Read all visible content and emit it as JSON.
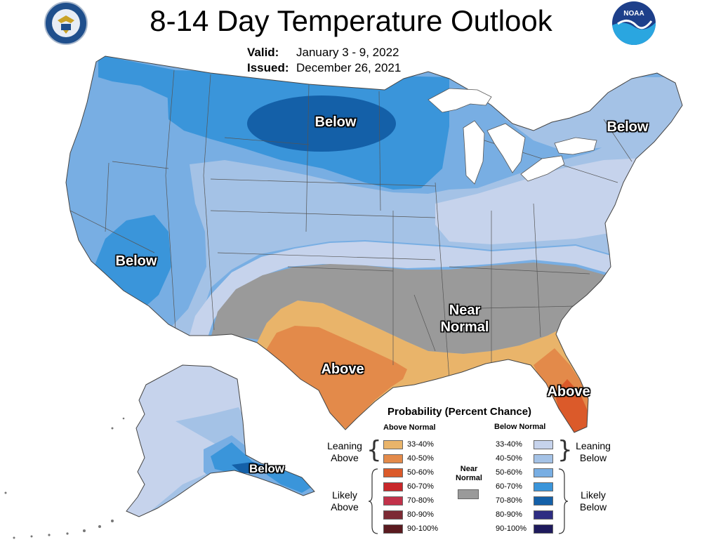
{
  "header": {
    "title": "8-14 Day Temperature Outlook",
    "valid_label": "Valid:",
    "valid_value": "January 3 - 9, 2022",
    "issued_label": "Issued:",
    "issued_value": "December 26, 2021"
  },
  "logos": {
    "left": "department-of-commerce-seal",
    "right_text": "NOAA"
  },
  "map_labels": [
    "Below",
    "Below",
    "Below",
    "Near",
    "Normal",
    "Above",
    "Above",
    "Below"
  ],
  "colors": {
    "below_33_40": "#c6d3ec",
    "below_40_50": "#a4c2e6",
    "below_50_60": "#78aee3",
    "below_60_70": "#3a95da",
    "below_70_80": "#1460a8",
    "below_80_90": "#2e2d82",
    "below_90_100": "#1e1a5c",
    "above_33_40": "#e9b46a",
    "above_40_50": "#e38a4a",
    "above_50_60": "#db5a2a",
    "above_60_70": "#c8272a",
    "above_70_80": "#c2324a",
    "above_80_90": "#7c2a34",
    "above_90_100": "#5a1a1f",
    "near_normal": "#9a9a9a"
  },
  "legend": {
    "title": "Probability (Percent Chance)",
    "above_header": "Above Normal",
    "below_header": "Below Normal",
    "near_label_1": "Near",
    "near_label_2": "Normal",
    "ranges": [
      "33-40%",
      "40-50%",
      "50-60%",
      "60-70%",
      "70-80%",
      "80-90%",
      "90-100%"
    ],
    "leaning_above_1": "Leaning",
    "leaning_above_2": "Above",
    "likely_above_1": "Likely",
    "likely_above_2": "Above",
    "leaning_below_1": "Leaning",
    "leaning_below_2": "Below",
    "likely_below_1": "Likely",
    "likely_below_2": "Below"
  }
}
